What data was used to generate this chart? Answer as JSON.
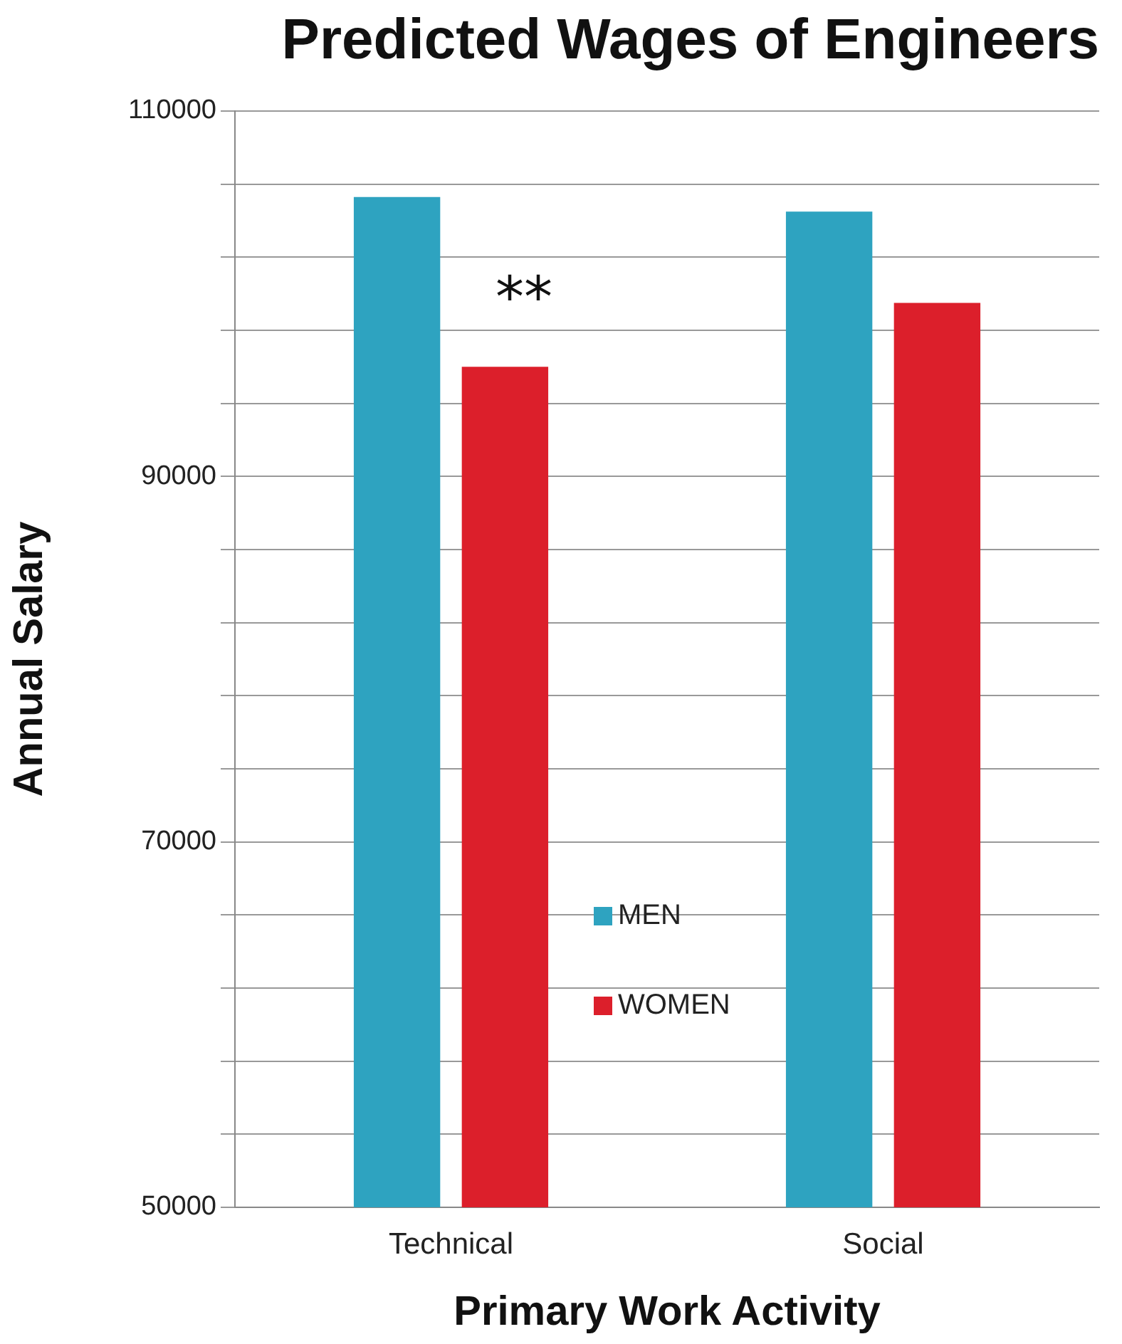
{
  "chart_data": {
    "type": "bar",
    "title": "Predicted Wages of Engineers",
    "xlabel": "Primary Work Activity",
    "ylabel": "Annual Salary",
    "categories": [
      "Technical",
      "Social"
    ],
    "series": [
      {
        "name": "MEN",
        "color": "#2ea3c0",
        "values": [
          105300,
          104500
        ]
      },
      {
        "name": "WOMEN",
        "color": "#dc1f2b",
        "values": [
          96000,
          99500
        ]
      }
    ],
    "ylim": [
      50000,
      110000
    ],
    "yticks": [
      50000,
      {
        "value": 54000,
        "label": null
      },
      {
        "value": 58000,
        "label": null
      },
      {
        "value": 62000,
        "label": null
      },
      {
        "value": 66000,
        "label": null
      },
      70000,
      {
        "value": 74000,
        "label": null
      },
      {
        "value": 78000,
        "label": null
      },
      {
        "value": 82000,
        "label": null
      },
      {
        "value": 86000,
        "label": null
      },
      90000,
      {
        "value": 94000,
        "label": null
      },
      {
        "value": 98000,
        "label": null
      },
      {
        "value": 102000,
        "label": null
      },
      {
        "value": 106000,
        "label": null
      },
      110000
    ],
    "grid": "y",
    "legend": "center",
    "annotations": [
      "**"
    ]
  }
}
